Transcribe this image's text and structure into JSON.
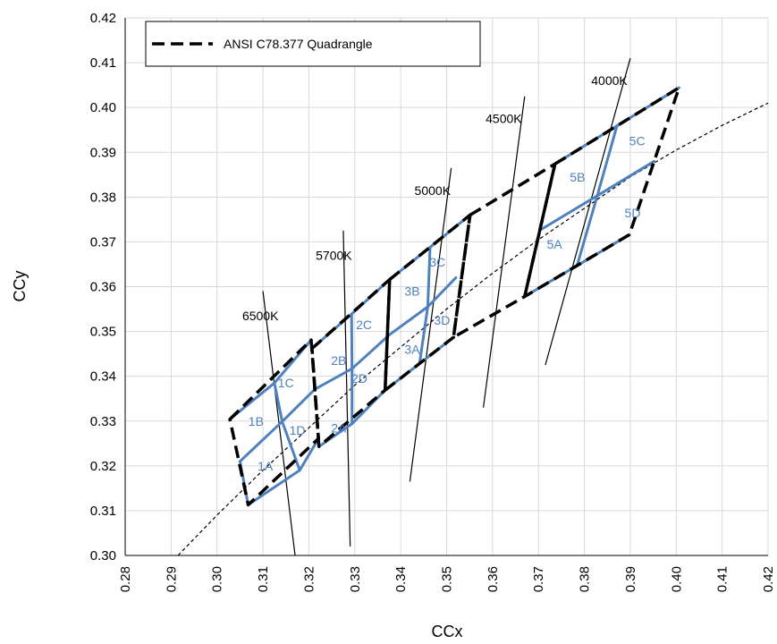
{
  "chart_data": {
    "type": "line",
    "xlabel": "CCx",
    "ylabel": "CCy",
    "xlim": [
      0.28,
      0.42
    ],
    "ylim": [
      0.3,
      0.42
    ],
    "x_ticks": [
      "0.28",
      "0.29",
      "0.30",
      "0.31",
      "0.32",
      "0.33",
      "0.34",
      "0.35",
      "0.36",
      "0.37",
      "0.38",
      "0.39",
      "0.40",
      "0.41",
      "0.42"
    ],
    "y_ticks": [
      "0.30",
      "0.31",
      "0.32",
      "0.33",
      "0.34",
      "0.35",
      "0.36",
      "0.37",
      "0.38",
      "0.39",
      "0.40",
      "0.41",
      "0.42"
    ],
    "legend": {
      "label": "ANSI  C78.377 Quadrangle",
      "position": "top-left"
    },
    "colors": {
      "quadrangle": "#000000",
      "bins": "#4f81bd",
      "cct_lines": "#000000",
      "planckian": "#000000"
    },
    "planckian_locus": [
      {
        "x": 0.2915,
        "y": 0.3
      },
      {
        "x": 0.3,
        "y": 0.309
      },
      {
        "x": 0.31,
        "y": 0.319
      },
      {
        "x": 0.32,
        "y": 0.3285
      },
      {
        "x": 0.33,
        "y": 0.338
      },
      {
        "x": 0.34,
        "y": 0.3465
      },
      {
        "x": 0.35,
        "y": 0.355
      },
      {
        "x": 0.36,
        "y": 0.363
      },
      {
        "x": 0.37,
        "y": 0.3705
      },
      {
        "x": 0.38,
        "y": 0.3775
      },
      {
        "x": 0.39,
        "y": 0.3845
      },
      {
        "x": 0.4,
        "y": 0.3905
      },
      {
        "x": 0.41,
        "y": 0.396
      },
      {
        "x": 0.42,
        "y": 0.401
      }
    ],
    "cct_lines": [
      {
        "label": "6500K",
        "start": {
          "x": 0.31,
          "y": 0.359
        },
        "end": {
          "x": 0.317,
          "y": 0.3
        },
        "label_at": {
          "x": 0.3055,
          "y": 0.3525
        }
      },
      {
        "label": "5700K",
        "start": {
          "x": 0.3275,
          "y": 0.3725
        },
        "end": {
          "x": 0.329,
          "y": 0.302
        },
        "label_at": {
          "x": 0.3215,
          "y": 0.366
        }
      },
      {
        "label": "5000K",
        "start": {
          "x": 0.351,
          "y": 0.3865
        },
        "end": {
          "x": 0.342,
          "y": 0.3165
        },
        "label_at": {
          "x": 0.343,
          "y": 0.3805
        }
      },
      {
        "label": "4500K",
        "start": {
          "x": 0.367,
          "y": 0.4025
        },
        "end": {
          "x": 0.358,
          "y": 0.333
        },
        "label_at": {
          "x": 0.3585,
          "y": 0.3965
        }
      },
      {
        "label": "4000K",
        "start": {
          "x": 0.39,
          "y": 0.411
        },
        "end": {
          "x": 0.3715,
          "y": 0.3425
        },
        "label_at": {
          "x": 0.3815,
          "y": 0.405
        }
      }
    ],
    "quadrangles": [
      {
        "name": "6500K",
        "points": [
          {
            "x": 0.3028,
            "y": 0.3304
          },
          {
            "x": 0.3205,
            "y": 0.3481
          },
          {
            "x": 0.3221,
            "y": 0.3261
          },
          {
            "x": 0.3068,
            "y": 0.3113
          }
        ]
      },
      {
        "name": "5700K",
        "points": [
          {
            "x": 0.3207,
            "y": 0.3462
          },
          {
            "x": 0.3376,
            "y": 0.3616
          },
          {
            "x": 0.3366,
            "y": 0.3369
          },
          {
            "x": 0.3222,
            "y": 0.3243
          }
        ]
      },
      {
        "name": "5000K",
        "points": [
          {
            "x": 0.3376,
            "y": 0.3616
          },
          {
            "x": 0.3551,
            "y": 0.376
          },
          {
            "x": 0.3515,
            "y": 0.3487
          },
          {
            "x": 0.3366,
            "y": 0.3369
          }
        ]
      },
      {
        "name": "4500K",
        "points": [
          {
            "x": 0.3551,
            "y": 0.376
          },
          {
            "x": 0.3736,
            "y": 0.3874
          },
          {
            "x": 0.367,
            "y": 0.3578
          },
          {
            "x": 0.3515,
            "y": 0.3487
          }
        ]
      },
      {
        "name": "4000K",
        "points": [
          {
            "x": 0.3736,
            "y": 0.3874
          },
          {
            "x": 0.4006,
            "y": 0.4044
          },
          {
            "x": 0.3898,
            "y": 0.3716
          },
          {
            "x": 0.367,
            "y": 0.3578
          }
        ]
      }
    ],
    "bin_grid": [
      {
        "name": "bins-1",
        "points": [
          {
            "x": 0.3125,
            "y": 0.3385
          },
          {
            "x": 0.318,
            "y": 0.319
          },
          {
            "x": 0.303,
            "y": 0.321
          },
          {
            "x": 0.309,
            "y": 0.333
          }
        ]
      },
      {
        "name": "bins-2",
        "points": [
          {
            "x": 0.3293,
            "y": 0.3534
          },
          {
            "x": 0.3295,
            "y": 0.3295
          },
          {
            "x": 0.3115,
            "y": 0.337
          },
          {
            "x": 0.314,
            "y": 0.332
          }
        ]
      },
      {
        "name": "bins-3",
        "points": [
          {
            "x": 0.3466,
            "y": 0.369
          },
          {
            "x": 0.344,
            "y": 0.343
          },
          {
            "x": 0.3245,
            "y": 0.345
          },
          {
            "x": 0.329,
            "y": 0.342
          }
        ]
      },
      {
        "name": "bins-5",
        "points": [
          {
            "x": 0.387,
            "y": 0.396
          },
          {
            "x": 0.3785,
            "y": 0.365
          },
          {
            "x": 0.371,
            "y": 0.3725
          },
          {
            "x": 0.394,
            "y": 0.3875
          }
        ]
      }
    ],
    "bin_lines": [
      [
        {
          "x": 0.3028,
          "y": 0.3304
        },
        {
          "x": 0.3125,
          "y": 0.3385
        },
        {
          "x": 0.3205,
          "y": 0.3481
        }
      ],
      [
        {
          "x": 0.3125,
          "y": 0.3385
        },
        {
          "x": 0.3142,
          "y": 0.3299
        },
        {
          "x": 0.318,
          "y": 0.319
        }
      ],
      [
        {
          "x": 0.305,
          "y": 0.321
        },
        {
          "x": 0.3142,
          "y": 0.3299
        },
        {
          "x": 0.3213,
          "y": 0.3371
        }
      ],
      [
        {
          "x": 0.305,
          "y": 0.321
        },
        {
          "x": 0.3068,
          "y": 0.3113
        }
      ],
      [
        {
          "x": 0.3068,
          "y": 0.3113
        },
        {
          "x": 0.318,
          "y": 0.319
        },
        {
          "x": 0.3221,
          "y": 0.3261
        }
      ],
      [
        {
          "x": 0.3207,
          "y": 0.3462
        },
        {
          "x": 0.3293,
          "y": 0.3539
        },
        {
          "x": 0.3376,
          "y": 0.3616
        }
      ],
      [
        {
          "x": 0.3293,
          "y": 0.3539
        },
        {
          "x": 0.3294,
          "y": 0.3417
        },
        {
          "x": 0.3294,
          "y": 0.3294
        }
      ],
      [
        {
          "x": 0.3213,
          "y": 0.3371
        },
        {
          "x": 0.3294,
          "y": 0.3417
        },
        {
          "x": 0.3376,
          "y": 0.3493
        },
        {
          "x": 0.3459,
          "y": 0.3555
        },
        {
          "x": 0.352,
          "y": 0.362
        }
      ],
      [
        {
          "x": 0.3222,
          "y": 0.3243
        },
        {
          "x": 0.3294,
          "y": 0.3294
        },
        {
          "x": 0.3366,
          "y": 0.3369
        }
      ],
      [
        {
          "x": 0.3376,
          "y": 0.3616
        },
        {
          "x": 0.3464,
          "y": 0.3688
        },
        {
          "x": 0.3551,
          "y": 0.376
        }
      ],
      [
        {
          "x": 0.3464,
          "y": 0.3688
        },
        {
          "x": 0.3459,
          "y": 0.3555
        },
        {
          "x": 0.3441,
          "y": 0.3428
        }
      ],
      [
        {
          "x": 0.3366,
          "y": 0.3369
        },
        {
          "x": 0.3441,
          "y": 0.3428
        },
        {
          "x": 0.3515,
          "y": 0.3487
        }
      ],
      [
        {
          "x": 0.3736,
          "y": 0.3874
        },
        {
          "x": 0.3871,
          "y": 0.3959
        },
        {
          "x": 0.4006,
          "y": 0.4044
        }
      ],
      [
        {
          "x": 0.3871,
          "y": 0.3959
        },
        {
          "x": 0.3828,
          "y": 0.3803
        },
        {
          "x": 0.3784,
          "y": 0.3647
        }
      ],
      [
        {
          "x": 0.3703,
          "y": 0.3726
        },
        {
          "x": 0.3828,
          "y": 0.3803
        },
        {
          "x": 0.3952,
          "y": 0.388
        }
      ],
      [
        {
          "x": 0.367,
          "y": 0.3578
        },
        {
          "x": 0.3784,
          "y": 0.3647
        },
        {
          "x": 0.3898,
          "y": 0.3716
        }
      ]
    ],
    "bin_labels": [
      {
        "label": "1A",
        "x": 0.3105,
        "y": 0.319
      },
      {
        "label": "1B",
        "x": 0.3085,
        "y": 0.329
      },
      {
        "label": "1C",
        "x": 0.315,
        "y": 0.3375
      },
      {
        "label": "1D",
        "x": 0.3175,
        "y": 0.327
      },
      {
        "label": "2A",
        "x": 0.3265,
        "y": 0.3275
      },
      {
        "label": "2B",
        "x": 0.3265,
        "y": 0.3425
      },
      {
        "label": "2C",
        "x": 0.332,
        "y": 0.3505
      },
      {
        "label": "2D",
        "x": 0.331,
        "y": 0.3385
      },
      {
        "label": "3A",
        "x": 0.3425,
        "y": 0.345
      },
      {
        "label": "3B",
        "x": 0.3425,
        "y": 0.358
      },
      {
        "label": "3C",
        "x": 0.348,
        "y": 0.3645
      },
      {
        "label": "3D",
        "x": 0.349,
        "y": 0.3515
      },
      {
        "label": "5A",
        "x": 0.3735,
        "y": 0.3685
      },
      {
        "label": "5B",
        "x": 0.3785,
        "y": 0.3835
      },
      {
        "label": "5C",
        "x": 0.3915,
        "y": 0.3915
      },
      {
        "label": "5D",
        "x": 0.3905,
        "y": 0.3755
      }
    ]
  }
}
